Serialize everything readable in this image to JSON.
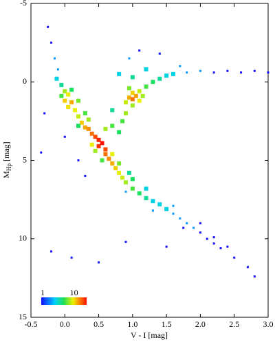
{
  "chart_data": {
    "type": "density_scatter",
    "x_label": "V - I [mag]",
    "y_label": {
      "main": "M",
      "sub": "Hp",
      "rest": "[mag]"
    },
    "xlim": [
      -0.5,
      3.0
    ],
    "ylim": [
      -5,
      15
    ],
    "y_inverted": true,
    "xticks": [
      -0.5,
      {
        "value": 0.0,
        "label": "0.0"
      },
      0.5,
      {
        "value": 1.0,
        "label": "1.0"
      },
      1.5,
      {
        "value": 2.0,
        "label": "2.0"
      },
      2.5,
      {
        "value": 3.0,
        "label": "3.0"
      }
    ],
    "yticks": [
      -5,
      0,
      5,
      10,
      15
    ],
    "colorbar": {
      "log": true,
      "clim": [
        1,
        28
      ],
      "ticks": [
        1,
        10
      ]
    },
    "x": [
      -0.25,
      -0.2,
      -0.15,
      -0.1,
      -0.12,
      -0.05,
      0.0,
      -0.05,
      0.05,
      0.0,
      0.1,
      0.05,
      0.15,
      0.2,
      0.25,
      0.3,
      0.35,
      0.4,
      0.45,
      0.5,
      0.55,
      0.5,
      0.6,
      0.6,
      0.65,
      0.7,
      0.75,
      0.8,
      0.85,
      0.9,
      1.0,
      1.1,
      1.2,
      1.3,
      1.4,
      1.5,
      1.6,
      1.7,
      1.8,
      1.9,
      2.0,
      2.1,
      2.2,
      2.3,
      2.5,
      2.7,
      2.8,
      0.1,
      0.2,
      0.3,
      0.35,
      0.2,
      0.4,
      0.45,
      0.7,
      0.8,
      0.55,
      0.95,
      1.0,
      0.9,
      1.2,
      1.3,
      1.6,
      1.75,
      2.0,
      2.2,
      2.4,
      -0.3,
      -0.35,
      0.0,
      0.2,
      0.3,
      -0.2,
      0.1,
      0.5,
      0.9,
      1.5,
      0.6,
      0.7,
      0.8,
      0.85,
      0.9,
      0.95,
      1.0,
      1.05,
      1.0,
      1.1,
      0.9,
      1.0,
      1.1,
      0.95,
      1.15,
      1.2,
      1.3,
      1.4,
      1.5,
      1.6,
      1.8,
      2.0,
      2.2,
      2.4,
      2.6,
      2.8,
      3.0,
      1.2,
      1.0,
      0.95,
      1.1,
      1.4,
      1.7,
      0.8,
      0.7
    ],
    "y": [
      -3.5,
      -2.5,
      -1.5,
      -0.8,
      -0.2,
      0.2,
      0.6,
      0.9,
      0.8,
      1.2,
      1.3,
      1.6,
      1.8,
      2.2,
      2.6,
      2.9,
      3.0,
      3.3,
      3.5,
      3.7,
      3.9,
      4.1,
      4.3,
      4.6,
      4.9,
      5.2,
      5.5,
      5.8,
      6.1,
      6.4,
      6.8,
      7.1,
      7.4,
      7.6,
      7.8,
      8.1,
      8.4,
      8.7,
      9.0,
      9.3,
      9.6,
      10.0,
      10.3,
      10.6,
      11.2,
      11.8,
      12.4,
      0.5,
      1.2,
      2.0,
      2.4,
      2.8,
      4.0,
      4.4,
      4.6,
      5.2,
      5.0,
      5.8,
      6.2,
      7.0,
      6.8,
      8.2,
      7.9,
      9.3,
      9.0,
      9.9,
      10.5,
      2.0,
      4.5,
      3.5,
      5.0,
      6.0,
      10.8,
      11.2,
      11.5,
      10.2,
      10.5,
      3.0,
      2.8,
      3.2,
      2.5,
      2.0,
      1.0,
      1.1,
      0.9,
      0.7,
      1.2,
      1.3,
      1.5,
      0.6,
      0.4,
      0.9,
      0.3,
      0.0,
      -0.2,
      -0.4,
      -0.5,
      -0.6,
      -0.7,
      -0.6,
      -0.7,
      -0.6,
      -0.7,
      -0.6,
      -0.8,
      -0.3,
      -1.5,
      -2.0,
      -1.8,
      -1.0,
      -0.5,
      1.8
    ],
    "values": [
      1,
      1,
      2,
      2,
      3,
      4,
      8,
      6,
      10,
      12,
      14,
      11,
      10,
      9,
      12,
      14,
      16,
      18,
      22,
      26,
      28,
      24,
      22,
      18,
      16,
      14,
      12,
      10,
      9,
      8,
      6,
      5,
      4,
      3,
      3,
      3,
      2,
      2,
      2,
      2,
      1,
      1,
      1,
      1,
      1,
      1,
      1,
      5,
      7,
      6,
      8,
      5,
      10,
      8,
      10,
      7,
      6,
      4,
      5,
      2,
      3,
      2,
      2,
      1,
      1,
      1,
      1,
      1,
      1,
      1,
      1,
      1,
      1,
      1,
      1,
      1,
      1,
      8,
      6,
      5,
      6,
      8,
      14,
      18,
      15,
      12,
      10,
      9,
      8,
      9,
      7,
      8,
      6,
      5,
      4,
      3,
      3,
      2,
      2,
      1,
      1,
      1,
      1,
      1,
      3,
      4,
      2,
      1,
      1,
      2,
      3,
      4
    ]
  }
}
